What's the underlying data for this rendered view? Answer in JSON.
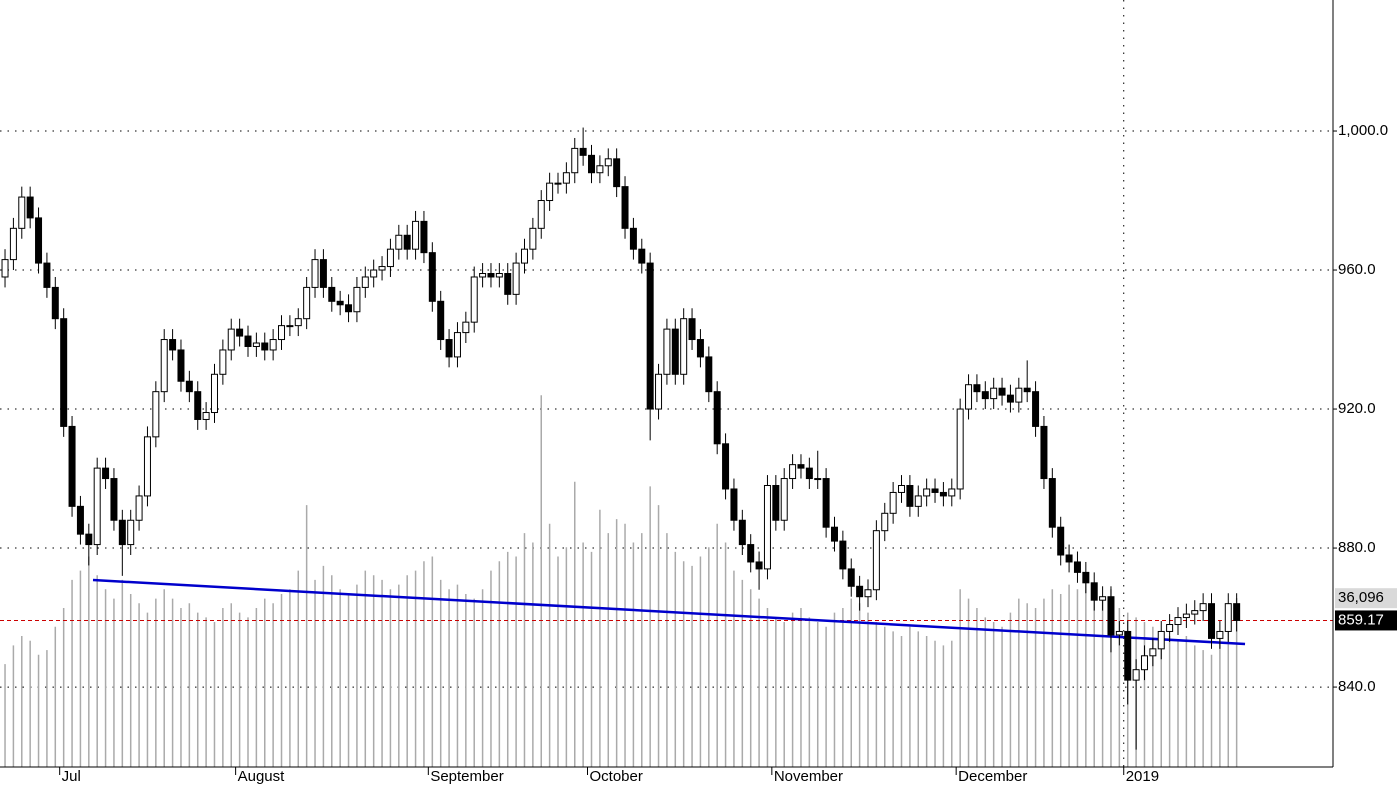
{
  "chart_data": {
    "type": "candlestick",
    "open": [
      958,
      963,
      972,
      981,
      975,
      962,
      955,
      946,
      915,
      892,
      884,
      881,
      903,
      900,
      888,
      881,
      888,
      895,
      912,
      925,
      940,
      937,
      928,
      925,
      917,
      919,
      930,
      937,
      943,
      941,
      938,
      939,
      937,
      940,
      944,
      944,
      946,
      955,
      963,
      955,
      951,
      950,
      948,
      955,
      958,
      960,
      961,
      966,
      970,
      966,
      974,
      965,
      951,
      940,
      935,
      942,
      945,
      958,
      959,
      958,
      959,
      953,
      962,
      966,
      972,
      980,
      985,
      985,
      988,
      995,
      993,
      988,
      990,
      992,
      984,
      972,
      966,
      962,
      920,
      930,
      943,
      930,
      946,
      940,
      935,
      925,
      910,
      897,
      888,
      881,
      876,
      874,
      898,
      888,
      900,
      904,
      903,
      900,
      900,
      886,
      882,
      874,
      869,
      866,
      868,
      885,
      890,
      896,
      898,
      892,
      895,
      897,
      896,
      895,
      897,
      920,
      927,
      925,
      923,
      926,
      924,
      922,
      926,
      925,
      915,
      900,
      886,
      878,
      876,
      873,
      870,
      865,
      866,
      855,
      856,
      842,
      845,
      849,
      851,
      856,
      858,
      860,
      861,
      862,
      864,
      854,
      856,
      864
    ],
    "high": [
      966,
      975,
      984,
      984,
      978,
      965,
      958,
      949,
      918,
      895,
      887,
      906,
      906,
      903,
      891,
      891,
      898,
      915,
      928,
      943,
      943,
      940,
      931,
      928,
      922,
      933,
      940,
      946,
      946,
      944,
      942,
      942,
      943,
      947,
      947,
      949,
      958,
      966,
      966,
      958,
      954,
      953,
      958,
      961,
      963,
      964,
      969,
      973,
      973,
      977,
      977,
      968,
      954,
      943,
      945,
      948,
      961,
      962,
      962,
      962,
      962,
      965,
      969,
      975,
      983,
      988,
      988,
      991,
      998,
      1001,
      996,
      993,
      995,
      995,
      987,
      975,
      969,
      965,
      933,
      946,
      946,
      949,
      949,
      943,
      938,
      928,
      913,
      900,
      891,
      884,
      879,
      901,
      901,
      903,
      907,
      907,
      906,
      908,
      903,
      889,
      885,
      877,
      872,
      871,
      888,
      893,
      899,
      901,
      901,
      898,
      900,
      900,
      899,
      900,
      923,
      930,
      930,
      928,
      929,
      929,
      927,
      929,
      934,
      928,
      918,
      903,
      889,
      881,
      879,
      876,
      873,
      869,
      869,
      859,
      859,
      848,
      852,
      854,
      859,
      861,
      863,
      864,
      865,
      867,
      867,
      859,
      867,
      867
    ],
    "low": [
      955,
      960,
      969,
      972,
      959,
      952,
      943,
      912,
      889,
      881,
      875,
      878,
      897,
      885,
      872,
      878,
      885,
      892,
      909,
      922,
      934,
      925,
      922,
      914,
      914,
      916,
      927,
      934,
      938,
      935,
      935,
      934,
      934,
      937,
      941,
      941,
      943,
      952,
      952,
      948,
      947,
      945,
      945,
      952,
      955,
      957,
      958,
      963,
      963,
      963,
      962,
      948,
      937,
      932,
      932,
      939,
      942,
      955,
      955,
      955,
      950,
      950,
      959,
      963,
      969,
      977,
      982,
      982,
      985,
      990,
      985,
      985,
      987,
      981,
      969,
      963,
      959,
      911,
      917,
      927,
      927,
      927,
      937,
      932,
      922,
      907,
      894,
      885,
      878,
      873,
      868,
      871,
      885,
      885,
      897,
      900,
      897,
      897,
      883,
      879,
      871,
      866,
      862,
      863,
      865,
      882,
      887,
      893,
      889,
      889,
      892,
      893,
      892,
      892,
      894,
      917,
      922,
      920,
      920,
      921,
      919,
      919,
      922,
      912,
      897,
      883,
      875,
      873,
      870,
      867,
      862,
      862,
      850,
      852,
      835,
      822,
      842,
      846,
      848,
      853,
      855,
      857,
      858,
      859,
      851,
      851,
      853,
      856
    ],
    "close": [
      963,
      972,
      981,
      975,
      962,
      955,
      946,
      915,
      892,
      884,
      881,
      903,
      900,
      888,
      881,
      888,
      895,
      912,
      925,
      940,
      937,
      928,
      925,
      917,
      919,
      930,
      937,
      943,
      941,
      938,
      939,
      937,
      940,
      944,
      944,
      946,
      955,
      963,
      955,
      951,
      950,
      948,
      955,
      958,
      960,
      961,
      966,
      970,
      966,
      974,
      965,
      951,
      940,
      935,
      942,
      945,
      958,
      959,
      958,
      959,
      953,
      962,
      966,
      972,
      980,
      985,
      985,
      988,
      995,
      993,
      988,
      990,
      992,
      984,
      972,
      966,
      962,
      920,
      930,
      943,
      930,
      946,
      940,
      935,
      925,
      910,
      897,
      888,
      881,
      876,
      874,
      898,
      888,
      900,
      904,
      903,
      900,
      900,
      886,
      882,
      874,
      869,
      866,
      868,
      885,
      890,
      896,
      898,
      892,
      895,
      897,
      896,
      895,
      897,
      920,
      927,
      925,
      923,
      926,
      924,
      922,
      926,
      925,
      915,
      900,
      886,
      878,
      876,
      873,
      870,
      865,
      866,
      855,
      856,
      842,
      845,
      849,
      851,
      856,
      858,
      860,
      861,
      862,
      864,
      854,
      856,
      864,
      859.17
    ],
    "volume": {
      "color": "#aaaaaa",
      "axis": "y2",
      "last_label": "36,096",
      "values": [
        22000,
        26000,
        28000,
        27000,
        24000,
        25000,
        30000,
        34000,
        40000,
        42000,
        45000,
        41000,
        38000,
        36000,
        40000,
        37000,
        35000,
        33000,
        36000,
        38000,
        36000,
        34000,
        35000,
        33000,
        32000,
        31000,
        34000,
        35000,
        33000,
        32000,
        34000,
        36000,
        35000,
        37000,
        38000,
        42000,
        56000,
        40000,
        43000,
        41000,
        38000,
        37000,
        39000,
        42000,
        41000,
        40000,
        38000,
        39000,
        41000,
        42000,
        44000,
        45000,
        40000,
        38000,
        39000,
        37000,
        36000,
        38000,
        42000,
        44000,
        46000,
        45000,
        50000,
        48000,
        79500,
        52000,
        45000,
        47000,
        61000,
        48000,
        46000,
        55000,
        50000,
        53000,
        52000,
        48000,
        50000,
        60000,
        56000,
        50000,
        46000,
        44000,
        43000,
        45000,
        47000,
        52000,
        48000,
        42000,
        40000,
        38000,
        36000,
        34000,
        32000,
        31000,
        33000,
        34000,
        32000,
        31000,
        30000,
        33000,
        34000,
        36000,
        35000,
        33000,
        31000,
        30000,
        29000,
        28000,
        30000,
        29000,
        28000,
        27000,
        26000,
        27000,
        38000,
        36000,
        34000,
        32000,
        31000,
        30000,
        33000,
        36000,
        35000,
        34000,
        36000,
        38000,
        37000,
        39000,
        38000,
        40000,
        37000,
        36000,
        38000,
        34000,
        33000,
        32000,
        31000,
        30000,
        29000,
        28000,
        27000,
        28000,
        26000,
        25000,
        24000,
        28000,
        30000,
        36096
      ]
    },
    "trendline": {
      "color": "#0000cc",
      "x": [
        10.5,
        148
      ],
      "y": [
        870.8,
        852.4
      ]
    },
    "last_close_line": {
      "color": "#cc0000"
    },
    "up_color": "#ffffff",
    "down_color": "#000000",
    "xlim": [
      -0.6,
      158.5
    ],
    "xticks": [
      {
        "value": 7,
        "label": "Jul"
      },
      {
        "value": 28,
        "label": "August"
      },
      {
        "value": 51,
        "label": "September"
      },
      {
        "value": 70,
        "label": "October"
      },
      {
        "value": 92,
        "label": "November"
      },
      {
        "value": 114,
        "label": "December"
      },
      {
        "value": 134,
        "label": "2019"
      }
    ],
    "year_line": 6,
    "ylim": [
      817,
      1037.7
    ],
    "yticks": [
      {
        "value": 840,
        "label": "840.0"
      },
      {
        "value": 880,
        "label": "880.0"
      },
      {
        "value": 920,
        "label": "920.0"
      },
      {
        "value": 960,
        "label": "960.0"
      },
      {
        "value": 1000,
        "label": "1,000.0"
      }
    ],
    "y2lim": [
      0,
      164000
    ],
    "grid": true
  }
}
